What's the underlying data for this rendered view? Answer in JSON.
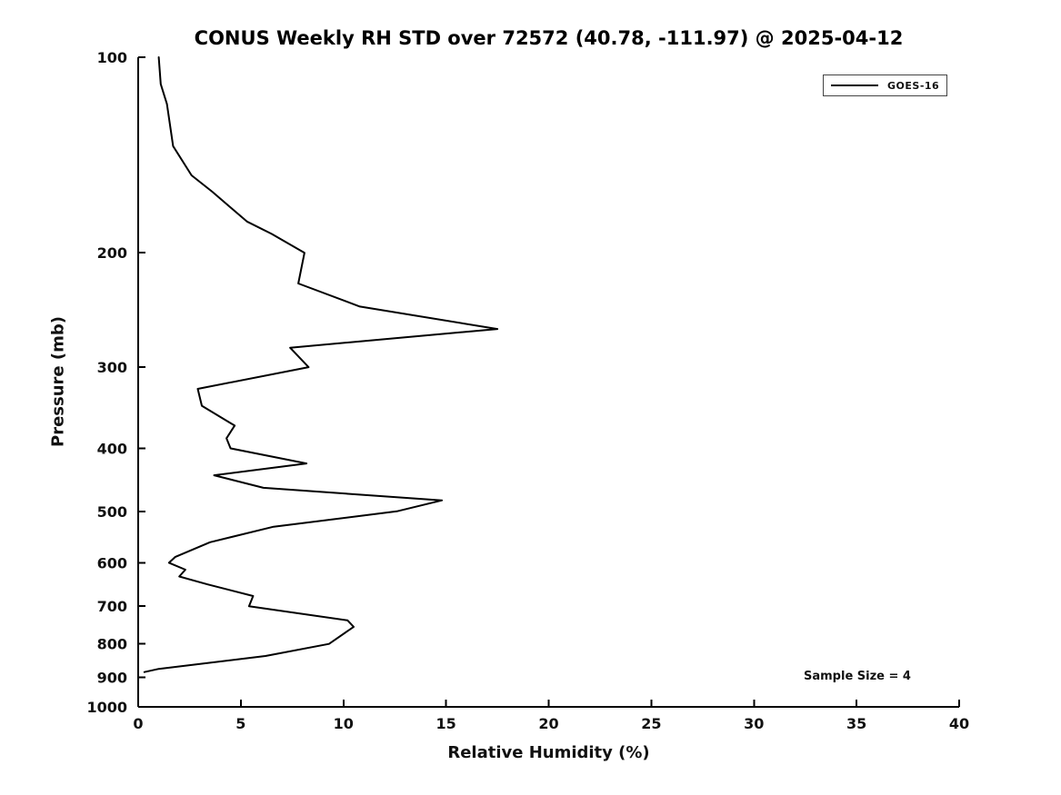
{
  "title": "CONUS Weekly RH STD over 72572 (40.78, -111.97) @ 2025-04-12",
  "x_axis": {
    "label": "Relative Humidity (%)"
  },
  "y_axis": {
    "label": "Pressure (mb)"
  },
  "legend": {
    "label": "GOES-16",
    "line_color": "#000000"
  },
  "annotation": {
    "sample_size_text": "Sample Size = 4"
  },
  "chart_data": {
    "type": "line",
    "title": "CONUS Weekly RH STD over 72572 (40.78, -111.97) @ 2025-04-12",
    "xlabel": "Relative Humidity (%)",
    "ylabel": "Pressure (mb)",
    "xlim": [
      0,
      40
    ],
    "ylim": [
      100,
      1000
    ],
    "x_ticks": [
      0,
      5,
      10,
      15,
      20,
      25,
      30,
      35,
      40
    ],
    "y_ticks": [
      100,
      200,
      300,
      400,
      500,
      600,
      700,
      800,
      900,
      1000
    ],
    "y_scale": "log",
    "y_inverted": true,
    "grid": false,
    "legend_position": "top-right",
    "series": [
      {
        "name": "GOES-16",
        "color": "#000000",
        "points_note": "pairs of [relative_humidity_std_percent, pressure_mb]",
        "points": [
          [
            1.0,
            100
          ],
          [
            1.1,
            110
          ],
          [
            1.4,
            118
          ],
          [
            1.7,
            137
          ],
          [
            2.6,
            152
          ],
          [
            3.6,
            161
          ],
          [
            5.3,
            179
          ],
          [
            6.5,
            187
          ],
          [
            8.1,
            200
          ],
          [
            7.8,
            223
          ],
          [
            10.8,
            242
          ],
          [
            17.5,
            262
          ],
          [
            7.4,
            280
          ],
          [
            8.3,
            300
          ],
          [
            2.9,
            324
          ],
          [
            3.1,
            344
          ],
          [
            4.7,
            369
          ],
          [
            4.3,
            386
          ],
          [
            4.5,
            400
          ],
          [
            8.2,
            422
          ],
          [
            3.7,
            440
          ],
          [
            6.1,
            460
          ],
          [
            14.8,
            481
          ],
          [
            12.6,
            500
          ],
          [
            6.6,
            528
          ],
          [
            3.5,
            558
          ],
          [
            1.8,
            588
          ],
          [
            1.5,
            600
          ],
          [
            2.3,
            615
          ],
          [
            2.0,
            630
          ],
          [
            3.4,
            648
          ],
          [
            5.6,
            675
          ],
          [
            5.4,
            700
          ],
          [
            10.2,
            736
          ],
          [
            10.5,
            753
          ],
          [
            9.3,
            800
          ],
          [
            6.2,
            835
          ],
          [
            1.0,
            874
          ],
          [
            0.3,
            884
          ]
        ]
      }
    ]
  }
}
